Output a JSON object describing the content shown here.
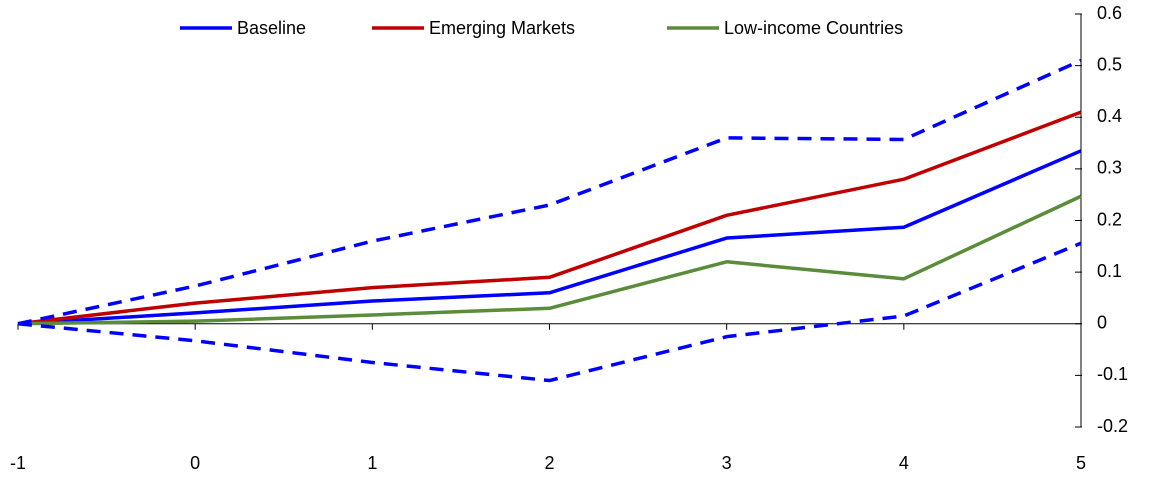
{
  "chart_data": {
    "type": "line",
    "x": [
      -1,
      0,
      1,
      2,
      3,
      4,
      5
    ],
    "xlim": [
      -1,
      5
    ],
    "xticks": [
      -1,
      0,
      1,
      2,
      3,
      4,
      5
    ],
    "ylim": [
      -0.2,
      0.6
    ],
    "yticks": [
      -0.2,
      -0.1,
      0,
      0.1,
      0.2,
      0.3,
      0.4,
      0.5,
      0.6
    ],
    "y_axis_side": "right",
    "grid": false,
    "legend": "top",
    "series": [
      {
        "name": "Baseline",
        "color": "#0000ff",
        "values": [
          0,
          0.021,
          0.044,
          0.06,
          0.166,
          0.187,
          0.335
        ]
      },
      {
        "name": "Emerging Markets",
        "color": "#c00000",
        "values": [
          0,
          0.04,
          0.07,
          0.09,
          0.21,
          0.28,
          0.41
        ]
      },
      {
        "name": "Low-income Countries",
        "color": "#5b8c3a",
        "values": [
          0,
          0.005,
          0.017,
          0.03,
          0.12,
          0.087,
          0.247
        ]
      },
      {
        "color": "#0000ff",
        "dashed": true,
        "values": [
          0,
          0.073,
          0.16,
          0.23,
          0.36,
          0.357,
          0.51
        ]
      },
      {
        "color": "#0000ff",
        "dashed": true,
        "values": [
          0,
          -0.033,
          -0.075,
          -0.11,
          -0.025,
          0.015,
          0.156
        ]
      }
    ]
  }
}
